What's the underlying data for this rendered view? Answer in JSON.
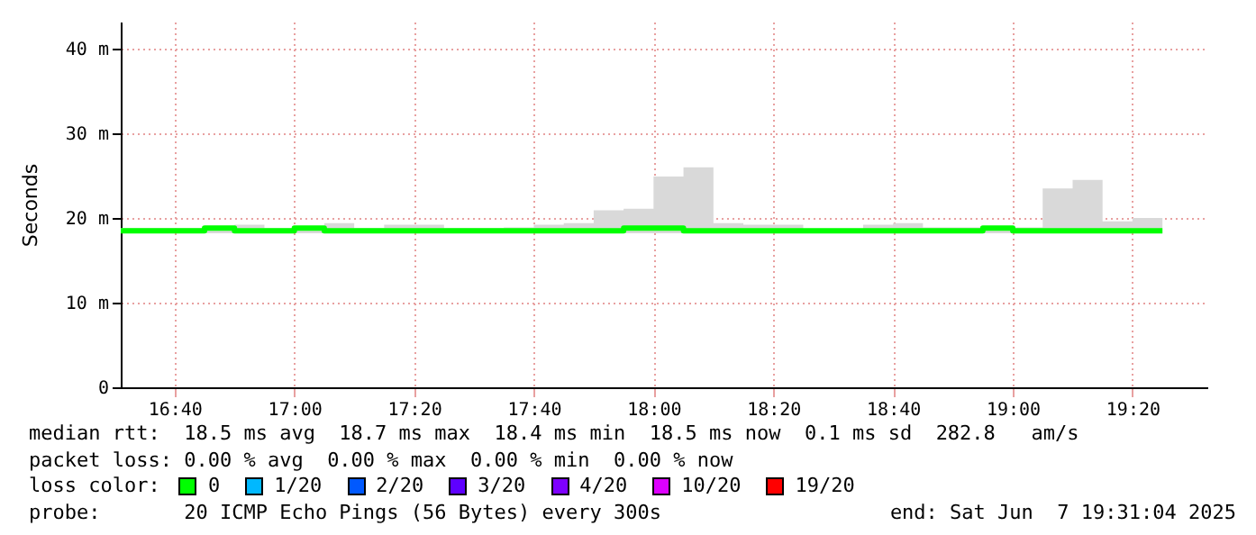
{
  "chart_data": {
    "type": "step",
    "ylabel": "Seconds",
    "x": [
      16.5167,
      16.5833,
      16.6667,
      16.75,
      16.8333,
      16.9167,
      17,
      17.0833,
      17.1667,
      17.25,
      17.3333,
      17.4167,
      17.5,
      17.5833,
      17.6667,
      17.75,
      17.8333,
      17.9167,
      18,
      18.0833,
      18.1667,
      18.25,
      18.3333,
      18.4167,
      18.5,
      18.5833,
      18.6667,
      18.75,
      18.8333,
      18.9167,
      19,
      19.0833,
      19.1667,
      19.25,
      19.3333,
      19.4167
    ],
    "series": [
      {
        "color": "#00ff00",
        "values": [
          18.5,
          18.5,
          18.5,
          18.8,
          18.5,
          18.5,
          18.8,
          18.5,
          18.5,
          18.5,
          18.5,
          18.5,
          18.5,
          18.5,
          18.5,
          18.5,
          18.5,
          18.8,
          18.8,
          18.5,
          18.5,
          18.5,
          18.5,
          18.5,
          18.5,
          18.5,
          18.5,
          18.5,
          18.5,
          18.8,
          18.5,
          18.5,
          18.5,
          18.5,
          18.5,
          18.5
        ],
        "lower": [
          18.2,
          18.2,
          18.2,
          18.2,
          18.2,
          18.2,
          18.2,
          18.2,
          18.2,
          18.2,
          18.2,
          18.2,
          18.2,
          18.2,
          18.2,
          18.2,
          18.2,
          18.2,
          18.2,
          18.2,
          18.2,
          18.2,
          18.2,
          18.2,
          18.2,
          18.2,
          18.2,
          18.2,
          18.2,
          18.2,
          18.2,
          18.2,
          18.2,
          18.2,
          18.2,
          18.2
        ],
        "upper": [
          18.8,
          18.8,
          18.8,
          19.1,
          19.2,
          18.8,
          19.0,
          19.4,
          18.8,
          19.2,
          19.2,
          18.8,
          18.8,
          18.9,
          19.2,
          19.4,
          20.9,
          21.1,
          24.9,
          26.0,
          19.4,
          19.2,
          19.2,
          18.7,
          18.7,
          19.2,
          19.4,
          18.9,
          18.9,
          19.0,
          18.9,
          23.5,
          24.5,
          19.6,
          20.0,
          20.0
        ]
      }
    ],
    "xlim": [
      16.5167,
      19.5417
    ],
    "xticks": [
      {
        "value": 16.6667,
        "label": "16:40"
      },
      {
        "value": 17,
        "label": "17:00"
      },
      {
        "value": 17.3333,
        "label": "17:20"
      },
      {
        "value": 17.6667,
        "label": "17:40"
      },
      {
        "value": 18,
        "label": "18:00"
      },
      {
        "value": 18.3333,
        "label": "18:20"
      },
      {
        "value": 18.6667,
        "label": "18:40"
      },
      {
        "value": 19,
        "label": "19:00"
      },
      {
        "value": 19.3333,
        "label": "19:20"
      }
    ],
    "ylim": [
      0,
      43.2
    ],
    "yticks": [
      0,
      {
        "value": 10,
        "label": "10 m"
      },
      {
        "value": 20,
        "label": "20 m"
      },
      {
        "value": 30,
        "label": "30 m"
      },
      {
        "value": 40,
        "label": "40 m"
      }
    ],
    "grid": true,
    "line_style": "solid",
    "marker": "none",
    "annotations": [
      "median rtt:  18.5 ms avg  18.7 ms max  18.4 ms min  18.5 ms now  0.1 ms sd  282.8   am/s",
      "packet loss: 0.00 % avg  0.00 % max  0.00 % min  0.00 % now",
      "loss color:",
      "0",
      "1/20",
      "2/20",
      "3/20",
      "4/20",
      "10/20",
      "19/20",
      "probe:       20 ICMP Echo Pings (56 Bytes) every 300s",
      "end: Sat Jun  7 19:31:04 2025"
    ]
  }
}
